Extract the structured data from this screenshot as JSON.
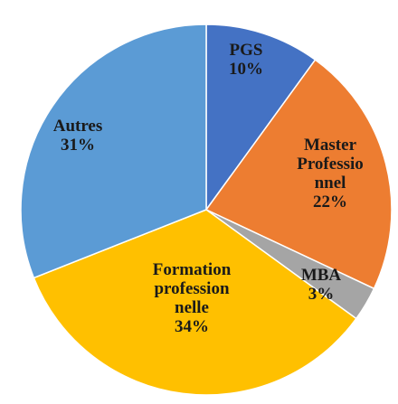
{
  "chart_data": {
    "type": "pie",
    "categories": [
      "PGS",
      "Master Professionnel",
      "MBA",
      "Formation professionnelle",
      "Autres"
    ],
    "values": [
      10,
      22,
      3,
      34,
      31
    ],
    "value_labels": [
      "10%",
      "22%",
      "3%",
      "34%",
      "31%"
    ],
    "colors": [
      "#4472c4",
      "#ed7d31",
      "#a5a5a5",
      "#ffc000",
      "#5b9bd5"
    ]
  }
}
